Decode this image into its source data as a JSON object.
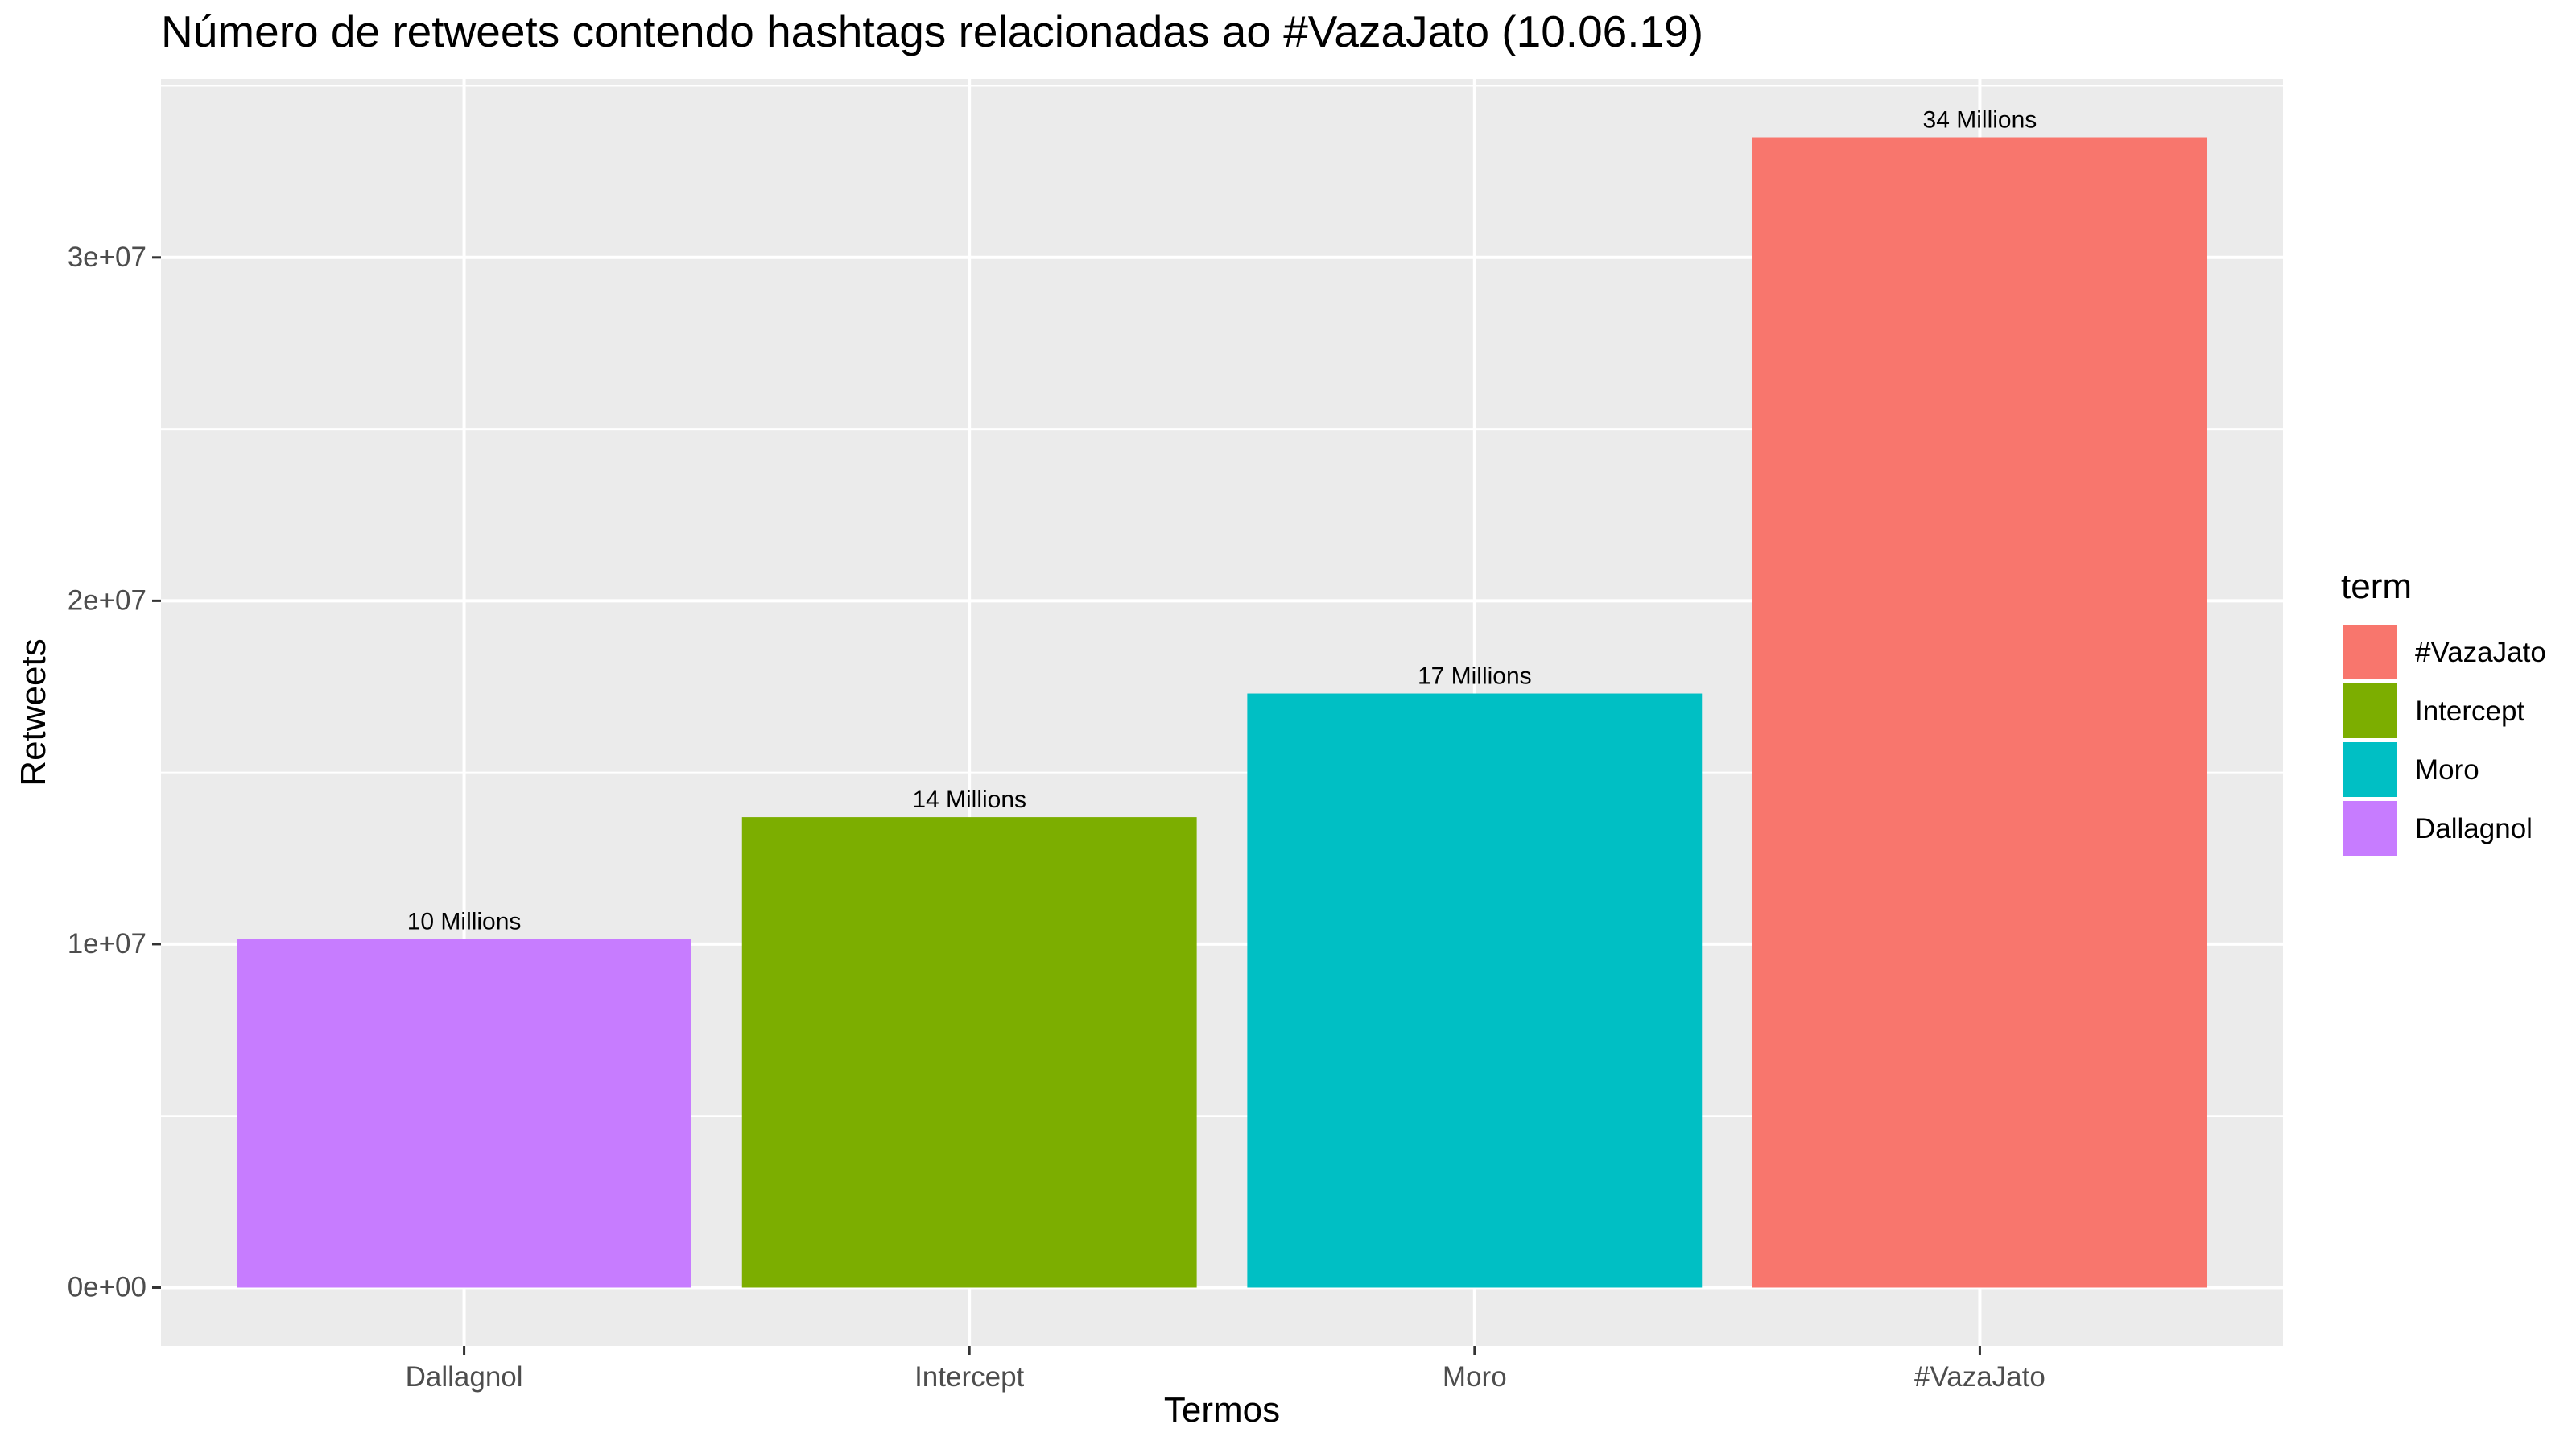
{
  "chart_data": {
    "type": "bar",
    "title": "Número de retweets contendo hashtags relacionadas ao #VazaJato (10.06.19)",
    "xlabel": "Termos",
    "ylabel": "Retweets",
    "categories": [
      "Dallagnol",
      "Intercept",
      "Moro",
      "#VazaJato"
    ],
    "values": [
      10150000,
      13700000,
      17300000,
      33500000
    ],
    "data_labels": [
      "10 Millions",
      "14 Millions",
      "17 Millions",
      "34 Millions"
    ],
    "bar_colors": [
      "#C77CFF",
      "#7CAE00",
      "#00BFC4",
      "#F8766D"
    ],
    "ylim": [
      -1700000,
      35200000
    ],
    "y_ticks": [
      {
        "value": 0,
        "label": "0e+00"
      },
      {
        "value": 10000000,
        "label": "1e+07"
      },
      {
        "value": 20000000,
        "label": "2e+07"
      },
      {
        "value": 30000000,
        "label": "3e+07"
      }
    ],
    "grid": true,
    "panel_background": "#EBEBEB",
    "grid_color": "#FFFFFF",
    "legend": {
      "title": "term",
      "placement": "right",
      "entries": [
        {
          "label": "#VazaJato",
          "color": "#F8766D"
        },
        {
          "label": "Intercept",
          "color": "#7CAE00"
        },
        {
          "label": "Moro",
          "color": "#00BFC4"
        },
        {
          "label": "Dallagnol",
          "color": "#C77CFF"
        }
      ]
    }
  }
}
